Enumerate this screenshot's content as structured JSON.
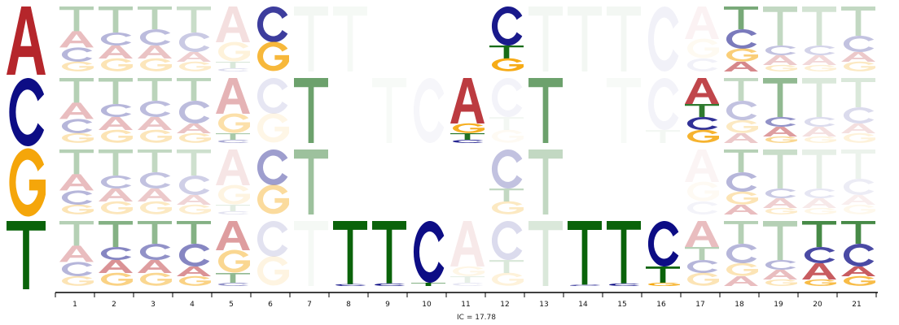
{
  "chart_data": {
    "type": "sequence-logo",
    "alphabet": [
      "A",
      "C",
      "G",
      "T"
    ],
    "colors": {
      "A": "#b5262b",
      "C": "#0d0d85",
      "G": "#f5a60a",
      "T": "#0a630a"
    },
    "positions": [
      "1",
      "2",
      "3",
      "4",
      "5",
      "6",
      "7",
      "8",
      "9",
      "10",
      "11",
      "12",
      "13",
      "14",
      "15",
      "16",
      "17",
      "18",
      "19",
      "20",
      "21"
    ],
    "rows": [
      {
        "letter": "A",
        "cells": [
          {
            "A": 0.25,
            "C": 0.22,
            "G": 0.15,
            "T": 0.38,
            "opacity": 0.3
          },
          {
            "A": 0.2,
            "C": 0.2,
            "G": 0.2,
            "T": 0.4,
            "opacity": 0.3
          },
          {
            "A": 0.2,
            "C": 0.25,
            "G": 0.2,
            "T": 0.35,
            "opacity": 0.28
          },
          {
            "A": 0.15,
            "C": 0.3,
            "G": 0.15,
            "T": 0.4,
            "opacity": 0.22
          },
          {
            "A": 0.55,
            "C": 0.05,
            "G": 0.3,
            "T": 0.1,
            "opacity": 0.15
          },
          {
            "A": 0.0,
            "C": 0.55,
            "G": 0.45,
            "T": 0.0,
            "opacity": 0.8
          },
          {
            "A": 0.0,
            "C": 0.0,
            "G": 0.0,
            "T": 1.0,
            "opacity": 0.05
          },
          {
            "A": 0.0,
            "C": 0.0,
            "G": 0.0,
            "T": 1.0,
            "opacity": 0.04
          },
          {
            "A": 0,
            "C": 0,
            "G": 0,
            "T": 0,
            "opacity": 0
          },
          {
            "A": 0,
            "C": 0,
            "G": 0,
            "T": 0,
            "opacity": 0
          },
          {
            "A": 0,
            "C": 0,
            "G": 0,
            "T": 0,
            "opacity": 0
          },
          {
            "A": 0.0,
            "C": 0.6,
            "G": 0.2,
            "T": 0.2,
            "opacity": 0.95
          },
          {
            "A": 0.0,
            "C": 0.0,
            "G": 0.0,
            "T": 1.0,
            "opacity": 0.05
          },
          {
            "A": 0.0,
            "C": 0.0,
            "G": 0.0,
            "T": 1.0,
            "opacity": 0.05
          },
          {
            "A": 0.0,
            "C": 0.0,
            "G": 0.0,
            "T": 1.0,
            "opacity": 0.05
          },
          {
            "A": 0.0,
            "C": 1.0,
            "G": 0.0,
            "T": 0.0,
            "opacity": 0.06
          },
          {
            "A": 0.5,
            "C": 0.2,
            "G": 0.3,
            "T": 0.0,
            "opacity": 0.06
          },
          {
            "A": 0.15,
            "C": 0.3,
            "G": 0.2,
            "T": 0.35,
            "opacity": 0.55
          },
          {
            "A": 0.15,
            "C": 0.15,
            "G": 0.1,
            "T": 0.6,
            "opacity": 0.25
          },
          {
            "A": 0.15,
            "C": 0.15,
            "G": 0.1,
            "T": 0.6,
            "opacity": 0.18
          },
          {
            "A": 0.15,
            "C": 0.25,
            "G": 0.15,
            "T": 0.45,
            "opacity": 0.25
          }
        ]
      },
      {
        "letter": "C",
        "cells": [
          {
            "A": 0.25,
            "C": 0.22,
            "G": 0.15,
            "T": 0.38,
            "opacity": 0.3
          },
          {
            "A": 0.2,
            "C": 0.2,
            "G": 0.2,
            "T": 0.4,
            "opacity": 0.3
          },
          {
            "A": 0.2,
            "C": 0.25,
            "G": 0.2,
            "T": 0.35,
            "opacity": 0.28
          },
          {
            "A": 0.15,
            "C": 0.35,
            "G": 0.15,
            "T": 0.35,
            "opacity": 0.28
          },
          {
            "A": 0.55,
            "C": 0.05,
            "G": 0.3,
            "T": 0.1,
            "opacity": 0.35
          },
          {
            "A": 0.0,
            "C": 0.55,
            "G": 0.45,
            "T": 0.0,
            "opacity": 0.1
          },
          {
            "A": 0.0,
            "C": 0.0,
            "G": 0.0,
            "T": 1.0,
            "opacity": 0.6
          },
          {
            "A": 0,
            "C": 0,
            "G": 0,
            "T": 0,
            "opacity": 0
          },
          {
            "A": 0.0,
            "C": 0.0,
            "G": 0.0,
            "T": 1.0,
            "opacity": 0.03
          },
          {
            "A": 0.0,
            "C": 1.0,
            "G": 0.0,
            "T": 0.0,
            "opacity": 0.04
          },
          {
            "A": 0.7,
            "C": 0.05,
            "G": 0.15,
            "T": 0.1,
            "opacity": 0.9
          },
          {
            "A": 0.0,
            "C": 0.6,
            "G": 0.2,
            "T": 0.2,
            "opacity": 0.05
          },
          {
            "A": 0.0,
            "C": 0.0,
            "G": 0.0,
            "T": 1.0,
            "opacity": 0.6
          },
          {
            "A": 0,
            "C": 0,
            "G": 0,
            "T": 0,
            "opacity": 0
          },
          {
            "A": 0.0,
            "C": 0.0,
            "G": 0.0,
            "T": 1.0,
            "opacity": 0.03
          },
          {
            "A": 0.0,
            "C": 0.8,
            "G": 0.0,
            "T": 0.2,
            "opacity": 0.05
          },
          {
            "A": 0.4,
            "C": 0.2,
            "G": 0.2,
            "T": 0.2,
            "opacity": 0.85
          },
          {
            "A": 0.15,
            "C": 0.3,
            "G": 0.2,
            "T": 0.35,
            "opacity": 0.25
          },
          {
            "A": 0.15,
            "C": 0.15,
            "G": 0.1,
            "T": 0.6,
            "opacity": 0.45
          },
          {
            "A": 0.15,
            "C": 0.15,
            "G": 0.1,
            "T": 0.6,
            "opacity": 0.15
          },
          {
            "A": 0.15,
            "C": 0.25,
            "G": 0.15,
            "T": 0.45,
            "opacity": 0.15
          }
        ]
      },
      {
        "letter": "G",
        "cells": [
          {
            "A": 0.25,
            "C": 0.22,
            "G": 0.15,
            "T": 0.38,
            "opacity": 0.3
          },
          {
            "A": 0.2,
            "C": 0.2,
            "G": 0.2,
            "T": 0.4,
            "opacity": 0.28
          },
          {
            "A": 0.2,
            "C": 0.25,
            "G": 0.2,
            "T": 0.35,
            "opacity": 0.25
          },
          {
            "A": 0.15,
            "C": 0.3,
            "G": 0.15,
            "T": 0.4,
            "opacity": 0.2
          },
          {
            "A": 0.55,
            "C": 0.05,
            "G": 0.3,
            "T": 0.1,
            "opacity": 0.12
          },
          {
            "A": 0.0,
            "C": 0.55,
            "G": 0.45,
            "T": 0.0,
            "opacity": 0.4
          },
          {
            "A": 0.0,
            "C": 0.0,
            "G": 0.0,
            "T": 1.0,
            "opacity": 0.4
          },
          {
            "A": 0,
            "C": 0,
            "G": 0,
            "T": 0,
            "opacity": 0
          },
          {
            "A": 0,
            "C": 0,
            "G": 0,
            "T": 0,
            "opacity": 0
          },
          {
            "A": 0,
            "C": 0,
            "G": 0,
            "T": 0,
            "opacity": 0
          },
          {
            "A": 0,
            "C": 0,
            "G": 0,
            "T": 0,
            "opacity": 0
          },
          {
            "A": 0.0,
            "C": 0.6,
            "G": 0.2,
            "T": 0.2,
            "opacity": 0.25
          },
          {
            "A": 0.0,
            "C": 0.0,
            "G": 0.0,
            "T": 1.0,
            "opacity": 0.25
          },
          {
            "A": 0,
            "C": 0,
            "G": 0,
            "T": 0,
            "opacity": 0
          },
          {
            "A": 0,
            "C": 0,
            "G": 0,
            "T": 0,
            "opacity": 0
          },
          {
            "A": 0,
            "C": 0,
            "G": 0,
            "T": 0,
            "opacity": 0
          },
          {
            "A": 0.5,
            "C": 0.2,
            "G": 0.3,
            "T": 0.0,
            "opacity": 0.05
          },
          {
            "A": 0.15,
            "C": 0.3,
            "G": 0.2,
            "T": 0.35,
            "opacity": 0.3
          },
          {
            "A": 0.15,
            "C": 0.15,
            "G": 0.1,
            "T": 0.6,
            "opacity": 0.22
          },
          {
            "A": 0.15,
            "C": 0.15,
            "G": 0.1,
            "T": 0.6,
            "opacity": 0.1
          },
          {
            "A": 0.15,
            "C": 0.25,
            "G": 0.15,
            "T": 0.45,
            "opacity": 0.08
          }
        ]
      },
      {
        "letter": "T",
        "cells": [
          {
            "A": 0.25,
            "C": 0.22,
            "G": 0.15,
            "T": 0.38,
            "opacity": 0.3
          },
          {
            "A": 0.2,
            "C": 0.2,
            "G": 0.2,
            "T": 0.4,
            "opacity": 0.5
          },
          {
            "A": 0.2,
            "C": 0.25,
            "G": 0.2,
            "T": 0.35,
            "opacity": 0.45
          },
          {
            "A": 0.15,
            "C": 0.35,
            "G": 0.15,
            "T": 0.35,
            "opacity": 0.5
          },
          {
            "A": 0.45,
            "C": 0.05,
            "G": 0.35,
            "T": 0.15,
            "opacity": 0.45
          },
          {
            "A": 0.0,
            "C": 0.55,
            "G": 0.45,
            "T": 0.0,
            "opacity": 0.12
          },
          {
            "A": 0.0,
            "C": 0.0,
            "G": 0.0,
            "T": 1.0,
            "opacity": 0.04
          },
          {
            "A": 0.0,
            "C": 0.03,
            "G": 0.0,
            "T": 0.97,
            "opacity": 1.0
          },
          {
            "A": 0.0,
            "C": 0.04,
            "G": 0.0,
            "T": 0.96,
            "opacity": 1.0
          },
          {
            "A": 0.0,
            "C": 0.95,
            "G": 0.0,
            "T": 0.05,
            "opacity": 1.0
          },
          {
            "A": 0.7,
            "C": 0.05,
            "G": 0.15,
            "T": 0.1,
            "opacity": 0.1
          },
          {
            "A": 0.0,
            "C": 0.6,
            "G": 0.2,
            "T": 0.2,
            "opacity": 0.15
          },
          {
            "A": 0.0,
            "C": 0.0,
            "G": 0.0,
            "T": 1.0,
            "opacity": 0.15
          },
          {
            "A": 0.0,
            "C": 0.02,
            "G": 0.0,
            "T": 0.98,
            "opacity": 1.0
          },
          {
            "A": 0.0,
            "C": 0.04,
            "G": 0.0,
            "T": 0.96,
            "opacity": 1.0
          },
          {
            "A": 0.0,
            "C": 0.7,
            "G": 0.05,
            "T": 0.25,
            "opacity": 1.0
          },
          {
            "A": 0.4,
            "C": 0.2,
            "G": 0.2,
            "T": 0.2,
            "opacity": 0.3
          },
          {
            "A": 0.15,
            "C": 0.3,
            "G": 0.2,
            "T": 0.35,
            "opacity": 0.3
          },
          {
            "A": 0.15,
            "C": 0.15,
            "G": 0.1,
            "T": 0.6,
            "opacity": 0.3
          },
          {
            "A": 0.25,
            "C": 0.25,
            "G": 0.1,
            "T": 0.4,
            "opacity": 0.75
          },
          {
            "A": 0.15,
            "C": 0.35,
            "G": 0.15,
            "T": 0.35,
            "opacity": 0.75
          }
        ]
      }
    ],
    "xlabel": "IC = 17.78"
  }
}
